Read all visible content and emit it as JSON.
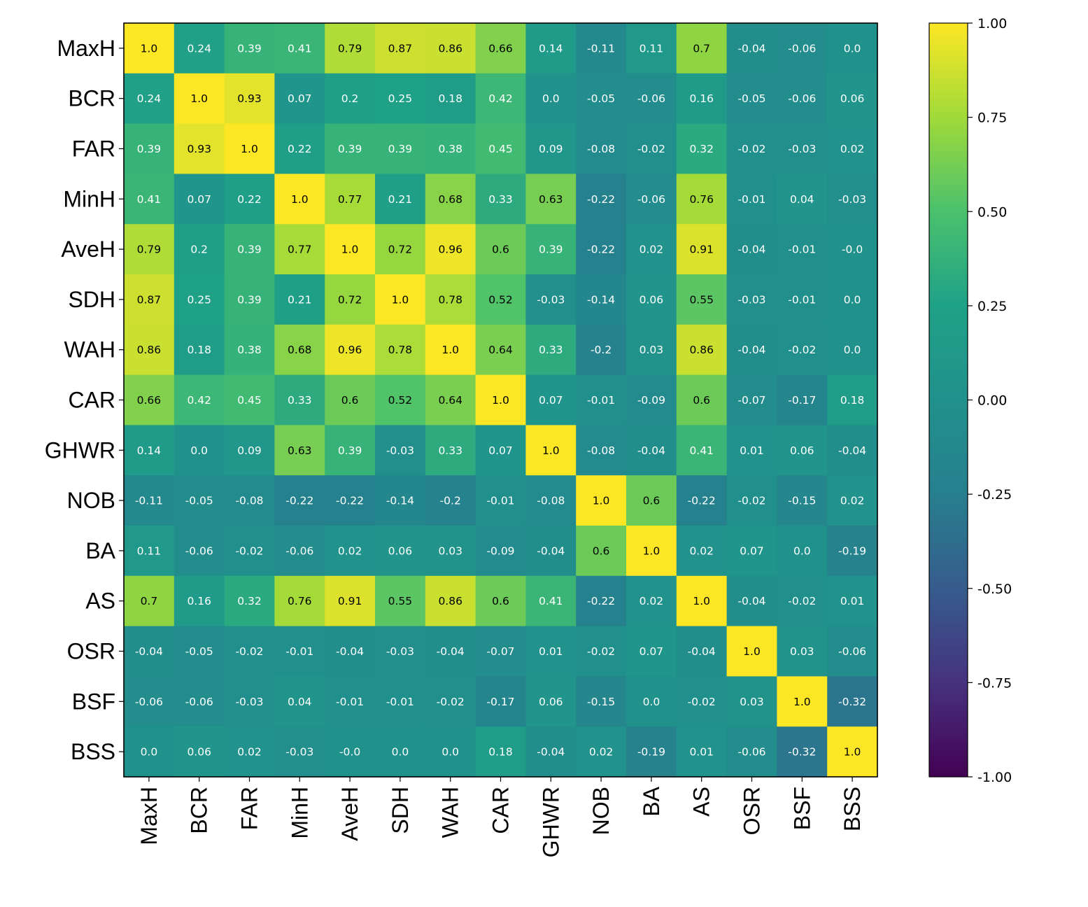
{
  "chart_data": {
    "type": "heatmap",
    "title": "",
    "colormap": "viridis",
    "vmin": -1.0,
    "vmax": 1.0,
    "row_labels": [
      "MaxH",
      "BCR",
      "FAR",
      "MinH",
      "AveH",
      "SDH",
      "WAH",
      "CAR",
      "GHWR",
      "NOB",
      "BA",
      "AS",
      "OSR",
      "BSF",
      "BSS"
    ],
    "col_labels": [
      "MaxH",
      "BCR",
      "FAR",
      "MinH",
      "AveH",
      "SDH",
      "WAH",
      "CAR",
      "GHWR",
      "NOB",
      "BA",
      "AS",
      "OSR",
      "BSF",
      "BSS"
    ],
    "matrix": [
      [
        "1.0",
        "0.24",
        "0.39",
        "0.41",
        "0.79",
        "0.87",
        "0.86",
        "0.66",
        "0.14",
        "-0.11",
        "0.11",
        "0.7",
        "-0.04",
        "-0.06",
        "0.0"
      ],
      [
        "0.24",
        "1.0",
        "0.93",
        "0.07",
        "0.2",
        "0.25",
        "0.18",
        "0.42",
        "0.0",
        "-0.05",
        "-0.06",
        "0.16",
        "-0.05",
        "-0.06",
        "0.06"
      ],
      [
        "0.39",
        "0.93",
        "1.0",
        "0.22",
        "0.39",
        "0.39",
        "0.38",
        "0.45",
        "0.09",
        "-0.08",
        "-0.02",
        "0.32",
        "-0.02",
        "-0.03",
        "0.02"
      ],
      [
        "0.41",
        "0.07",
        "0.22",
        "1.0",
        "0.77",
        "0.21",
        "0.68",
        "0.33",
        "0.63",
        "-0.22",
        "-0.06",
        "0.76",
        "-0.01",
        "0.04",
        "-0.03"
      ],
      [
        "0.79",
        "0.2",
        "0.39",
        "0.77",
        "1.0",
        "0.72",
        "0.96",
        "0.6",
        "0.39",
        "-0.22",
        "0.02",
        "0.91",
        "-0.04",
        "-0.01",
        "-0.0"
      ],
      [
        "0.87",
        "0.25",
        "0.39",
        "0.21",
        "0.72",
        "1.0",
        "0.78",
        "0.52",
        "-0.03",
        "-0.14",
        "0.06",
        "0.55",
        "-0.03",
        "-0.01",
        "0.0"
      ],
      [
        "0.86",
        "0.18",
        "0.38",
        "0.68",
        "0.96",
        "0.78",
        "1.0",
        "0.64",
        "0.33",
        "-0.2",
        "0.03",
        "0.86",
        "-0.04",
        "-0.02",
        "0.0"
      ],
      [
        "0.66",
        "0.42",
        "0.45",
        "0.33",
        "0.6",
        "0.52",
        "0.64",
        "1.0",
        "0.07",
        "-0.01",
        "-0.09",
        "0.6",
        "-0.07",
        "-0.17",
        "0.18"
      ],
      [
        "0.14",
        "0.0",
        "0.09",
        "0.63",
        "0.39",
        "-0.03",
        "0.33",
        "0.07",
        "1.0",
        "-0.08",
        "-0.04",
        "0.41",
        "0.01",
        "0.06",
        "-0.04"
      ],
      [
        "-0.11",
        "-0.05",
        "-0.08",
        "-0.22",
        "-0.22",
        "-0.14",
        "-0.2",
        "-0.01",
        "-0.08",
        "1.0",
        "0.6",
        "-0.22",
        "-0.02",
        "-0.15",
        "0.02"
      ],
      [
        "0.11",
        "-0.06",
        "-0.02",
        "-0.06",
        "0.02",
        "0.06",
        "0.03",
        "-0.09",
        "-0.04",
        "0.6",
        "1.0",
        "0.02",
        "0.07",
        "0.0",
        "-0.19"
      ],
      [
        "0.7",
        "0.16",
        "0.32",
        "0.76",
        "0.91",
        "0.55",
        "0.86",
        "0.6",
        "0.41",
        "-0.22",
        "0.02",
        "1.0",
        "-0.04",
        "-0.02",
        "0.01"
      ],
      [
        "-0.04",
        "-0.05",
        "-0.02",
        "-0.01",
        "-0.04",
        "-0.03",
        "-0.04",
        "-0.07",
        "0.01",
        "-0.02",
        "0.07",
        "-0.04",
        "1.0",
        "0.03",
        "-0.06"
      ],
      [
        "-0.06",
        "-0.06",
        "-0.03",
        "0.04",
        "-0.01",
        "-0.01",
        "-0.02",
        "-0.17",
        "0.06",
        "-0.15",
        "0.0",
        "-0.02",
        "0.03",
        "1.0",
        "-0.32"
      ],
      [
        "0.0",
        "0.06",
        "0.02",
        "-0.03",
        "-0.0",
        "0.0",
        "0.0",
        "0.18",
        "-0.04",
        "0.02",
        "-0.19",
        "0.01",
        "-0.06",
        "-0.32",
        "1.0"
      ]
    ],
    "colorbar": {
      "ticks": [
        1.0,
        0.75,
        0.5,
        0.25,
        0.0,
        -0.25,
        -0.5,
        -0.75,
        -1.0
      ],
      "tick_labels": [
        "1.00",
        "0.75",
        "0.50",
        "0.25",
        "0.00",
        "-0.25",
        "-0.50",
        "-0.75",
        "-1.00"
      ]
    }
  }
}
